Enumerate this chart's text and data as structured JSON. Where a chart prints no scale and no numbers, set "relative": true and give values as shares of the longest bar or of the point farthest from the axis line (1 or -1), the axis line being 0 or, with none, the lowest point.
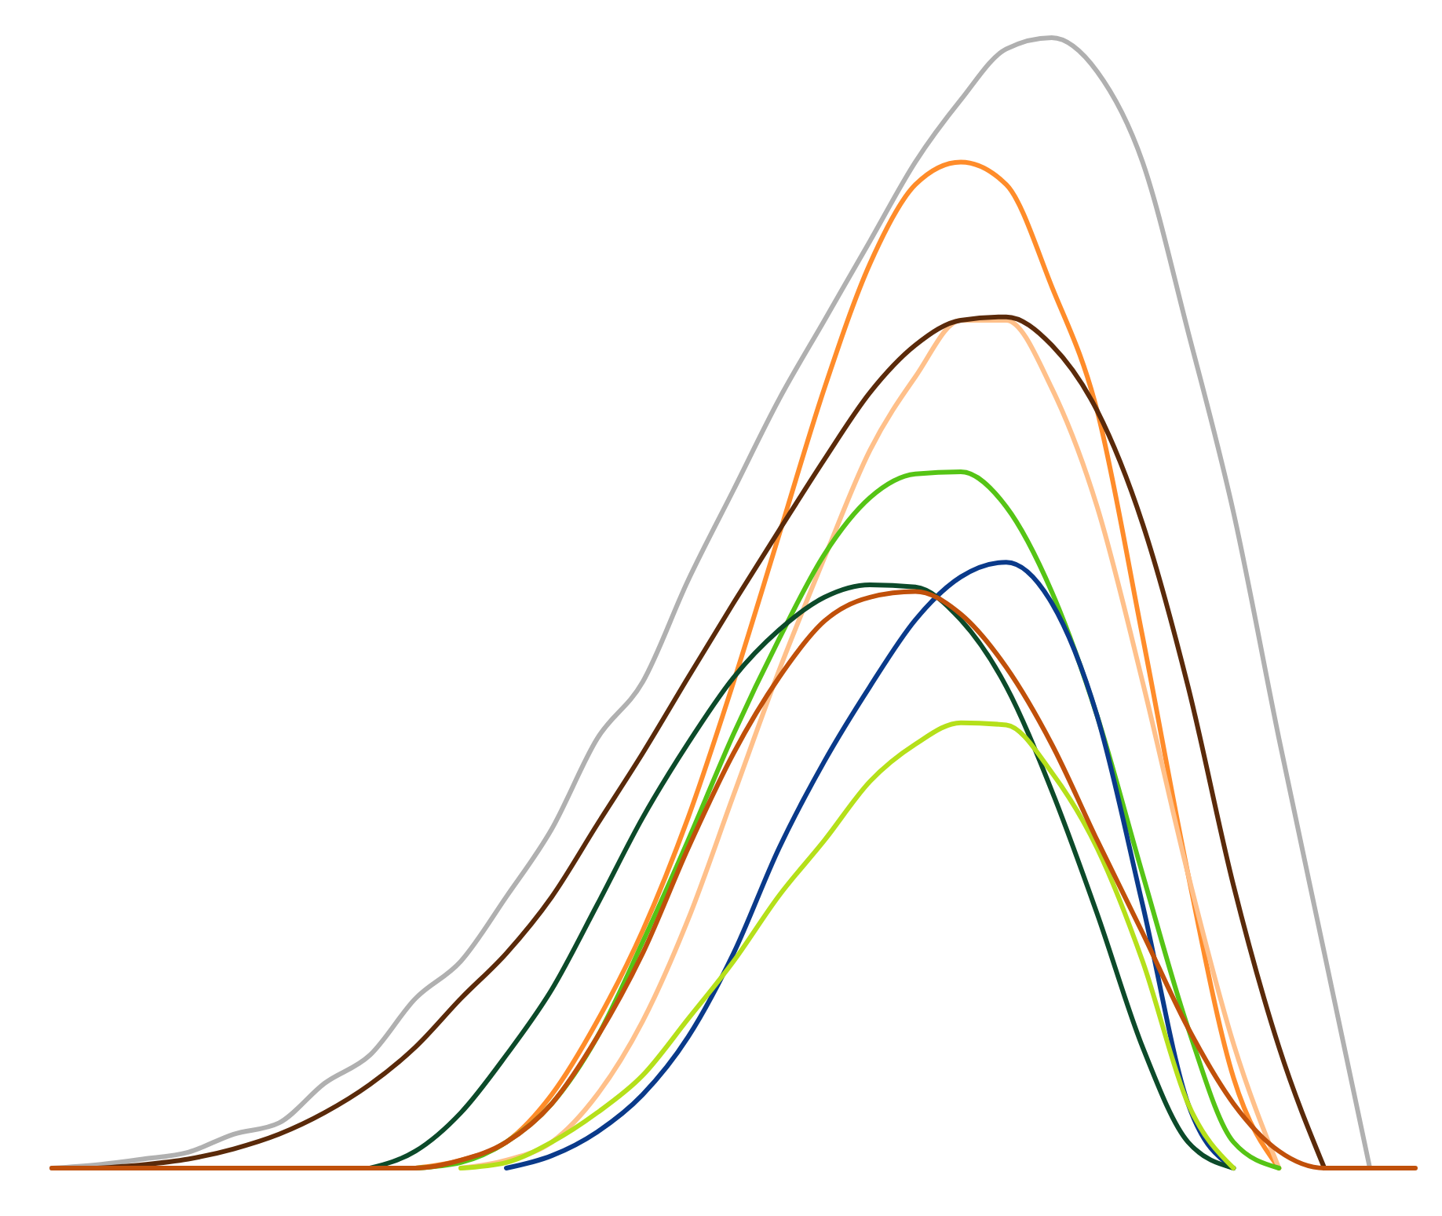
{
  "chart_data": {
    "type": "line",
    "relative": true,
    "categories": [
      null,
      null,
      null,
      null,
      null,
      null,
      null,
      null,
      null,
      null,
      null,
      null,
      null,
      null,
      null,
      null,
      null,
      null,
      null,
      null,
      null,
      null,
      null,
      null,
      null,
      null,
      null,
      null,
      null,
      null,
      null
    ],
    "series": [
      {
        "color": "#b0b0b0",
        "values": [
          0,
          0.003,
          0.008,
          0.014,
          0.03,
          0.04,
          0.075,
          0.1,
          0.15,
          0.183,
          0.24,
          0.3,
          0.38,
          0.43,
          0.52,
          0.6,
          0.68,
          0.75,
          0.82,
          0.89,
          0.945,
          0.99,
          1,
          0.97,
          0.89,
          0.74,
          0.58,
          0.38,
          0.19,
          0,
          null
        ]
      },
      {
        "color": "#ff8c2a",
        "values": [
          null,
          null,
          null,
          null,
          null,
          null,
          null,
          null,
          0,
          0.007,
          0.023,
          0.065,
          0.13,
          0.21,
          0.31,
          0.43,
          0.56,
          0.69,
          0.8,
          0.87,
          0.89,
          0.87,
          0.78,
          0.67,
          0.47,
          0.26,
          0.08,
          0,
          null,
          null,
          null
        ]
      },
      {
        "color": "#ffc08a",
        "values": [
          null,
          null,
          null,
          null,
          null,
          null,
          null,
          null,
          null,
          0,
          0.007,
          0.023,
          0.065,
          0.13,
          0.22,
          0.33,
          0.44,
          0.54,
          0.635,
          0.7,
          0.75,
          0.75,
          0.69,
          0.585,
          0.43,
          0.26,
          0.11,
          0,
          null,
          null,
          null
        ]
      },
      {
        "color": "#5a2a0a",
        "values": [
          null,
          0,
          0.003,
          0.008,
          0.017,
          0.03,
          0.049,
          0.074,
          0.107,
          0.15,
          0.19,
          0.24,
          0.304,
          0.367,
          0.434,
          0.5,
          0.564,
          0.627,
          0.686,
          0.728,
          0.75,
          0.753,
          0.728,
          0.67,
          0.57,
          0.426,
          0.25,
          0.107,
          0,
          null,
          null
        ]
      },
      {
        "color": "#55c415",
        "values": [
          null,
          null,
          null,
          null,
          null,
          null,
          null,
          null,
          0,
          0.005,
          0.023,
          0.057,
          0.116,
          0.2,
          0.29,
          0.384,
          0.468,
          0.543,
          0.593,
          0.614,
          0.616,
          0.585,
          0.51,
          0.4,
          0.26,
          0.124,
          0.023,
          0,
          null,
          null,
          null
        ]
      },
      {
        "color": "#0a3a8a",
        "values": [
          null,
          null,
          null,
          null,
          null,
          null,
          null,
          null,
          null,
          null,
          0,
          0.011,
          0.032,
          0.065,
          0.116,
          0.19,
          0.283,
          0.36,
          0.426,
          0.485,
          0.523,
          0.536,
          0.5,
          0.4,
          0.233,
          0.057,
          0,
          null,
          null,
          null,
          null
        ]
      },
      {
        "color": "#0c4a2a",
        "values": [
          null,
          null,
          null,
          null,
          null,
          null,
          null,
          0,
          0.015,
          0.049,
          0.1,
          0.158,
          0.233,
          0.31,
          0.376,
          0.434,
          0.476,
          0.505,
          0.516,
          0.514,
          0.485,
          0.426,
          0.334,
          0.225,
          0.107,
          0.023,
          0,
          null,
          null,
          null,
          null
        ]
      },
      {
        "color": "#b5e01a",
        "values": [
          null,
          null,
          null,
          null,
          null,
          null,
          null,
          null,
          null,
          0,
          0.005,
          0.023,
          0.049,
          0.082,
          0.132,
          0.183,
          0.241,
          0.29,
          0.342,
          0.375,
          0.394,
          0.392,
          0.35,
          0.283,
          0.183,
          0.057,
          0,
          null,
          null,
          null,
          null
        ]
      },
      {
        "color": "#c0500a",
        "values": [
          0,
          0,
          0,
          0,
          0,
          0,
          0,
          0,
          0,
          0.007,
          0.023,
          0.057,
          0.116,
          0.19,
          0.283,
          0.367,
          0.434,
          0.484,
          0.505,
          0.51,
          0.49,
          0.443,
          0.375,
          0.29,
          0.208,
          0.124,
          0.057,
          0.015,
          0,
          0,
          0
        ]
      }
    ]
  }
}
